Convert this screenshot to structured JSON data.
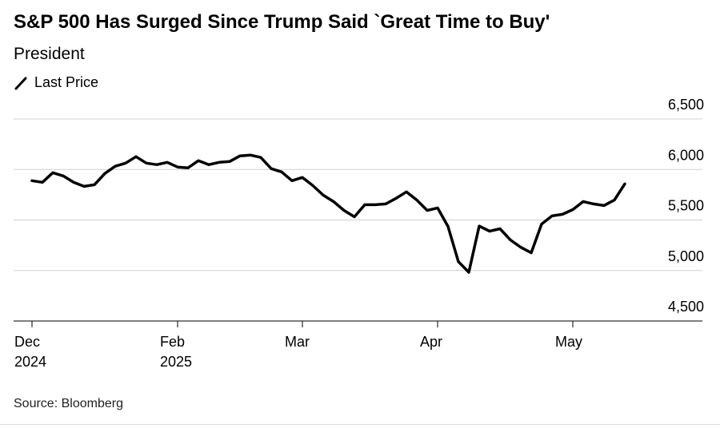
{
  "chart_data": {
    "type": "line",
    "title": "S&P 500 Has Surged Since Trump Said `Great Time to Buy'",
    "subtitle": "President",
    "source": "Source: Bloomberg",
    "categories": [
      "Dec\n2024",
      null,
      null,
      null,
      null,
      null,
      null,
      null,
      null,
      null,
      null,
      null,
      null,
      null,
      "Feb\n2025",
      null,
      null,
      null,
      null,
      null,
      null,
      null,
      null,
      null,
      null,
      null,
      "Mar",
      null,
      null,
      null,
      null,
      null,
      null,
      null,
      null,
      null,
      null,
      null,
      null,
      "Apr",
      null,
      null,
      null,
      null,
      null,
      null,
      null,
      null,
      null,
      null,
      null,
      null,
      "May",
      null,
      null,
      null,
      null,
      null
    ],
    "series": [
      {
        "name": "Last Price",
        "color": "#000000",
        "values": [
          5889,
          5873,
          5968,
          5936,
          5873,
          5833,
          5849,
          5960,
          6032,
          6063,
          6127,
          6063,
          6048,
          6071,
          6024,
          6016,
          6087,
          6048,
          6071,
          6079,
          6135,
          6143,
          6119,
          6008,
          5976,
          5889,
          5921,
          5841,
          5746,
          5682,
          5595,
          5532,
          5651,
          5651,
          5659,
          5714,
          5778,
          5698,
          5595,
          5619,
          5436,
          5087,
          4982,
          5440,
          5389,
          5413,
          5302,
          5230,
          5175,
          5460,
          5540,
          5556,
          5603,
          5683,
          5659,
          5643,
          5698,
          5857
        ]
      }
    ],
    "ylim": [
      4500,
      6500
    ],
    "yticks": [
      {
        "value": 4500,
        "label": "4,500"
      },
      {
        "value": 5000,
        "label": "5,000"
      },
      {
        "value": 5500,
        "label": "5,500"
      },
      {
        "value": 6000,
        "label": "6,000"
      },
      {
        "value": 6500,
        "label": "6,500"
      }
    ],
    "grid": true
  }
}
